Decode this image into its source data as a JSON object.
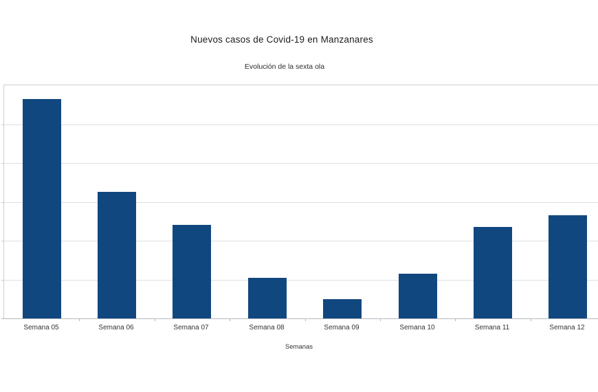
{
  "chart_data": {
    "type": "bar",
    "title": "Nuevos casos de Covid-19 en Manzanares",
    "subtitle": "Evolución de la sexta ola",
    "xlabel": "Semanas",
    "ylabel": "",
    "categories": [
      "Semana 05",
      "Semana 06",
      "Semana 07",
      "Semana 08",
      "Semana 09",
      "Semana 10",
      "Semana 11",
      "Semana 12"
    ],
    "series": [
      {
        "name": "Nuevos casos",
        "values_in_gridline_units": [
          5.65,
          3.25,
          2.4,
          1.05,
          0.5,
          1.15,
          2.35,
          2.65
        ]
      }
    ],
    "y_axis": {
      "tick_labels_visible": false,
      "gridline_divisions": 6,
      "ylim_gridline_units": [
        0,
        6
      ]
    },
    "legend": "none",
    "grid": "horizontal",
    "colors": {
      "bar_fill": "#11477f",
      "gridline": "#dcdfe3",
      "axis_line": "#b3b8be",
      "frame_line": "#c9cdd2",
      "title_text": "#1c1c1c",
      "label_text": "#333333",
      "background": "#ffffff"
    }
  }
}
